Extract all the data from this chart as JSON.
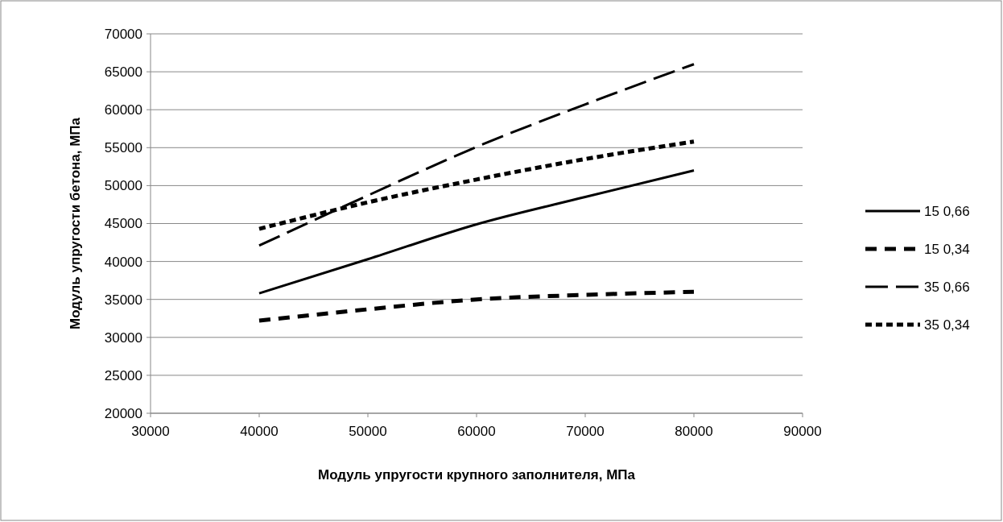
{
  "chart_data": {
    "type": "line",
    "xlabel": "Модуль упругости крупного заполнителя, МПа",
    "ylabel": "Модуль упругости бетона, МПа",
    "x": [
      40000,
      50000,
      60000,
      70000,
      80000
    ],
    "series": [
      {
        "name": "15 0,66",
        "color": "#000000",
        "line_style": "solid",
        "values": [
          35800,
          40300,
          44900,
          48500,
          52000
        ]
      },
      {
        "name": "15 0,34",
        "color": "#000000",
        "line_style": "dashed",
        "values": [
          32200,
          33700,
          35000,
          35600,
          36000
        ]
      },
      {
        "name": "35 0,66",
        "color": "#000000",
        "line_style": "longdash",
        "values": [
          42100,
          48700,
          55100,
          60700,
          66000
        ]
      },
      {
        "name": "35 0,34",
        "color": "#000000",
        "line_style": "dotted",
        "values": [
          44300,
          47800,
          50800,
          53500,
          55800
        ]
      }
    ],
    "xlim": [
      30000,
      90000
    ],
    "xticks": [
      30000,
      40000,
      50000,
      60000,
      70000,
      80000,
      90000
    ],
    "ylim": [
      20000,
      70000
    ],
    "yticks": [
      20000,
      25000,
      30000,
      35000,
      40000,
      45000,
      50000,
      55000,
      60000,
      65000,
      70000
    ],
    "grid": "y",
    "legend": "right",
    "marker": "none"
  }
}
